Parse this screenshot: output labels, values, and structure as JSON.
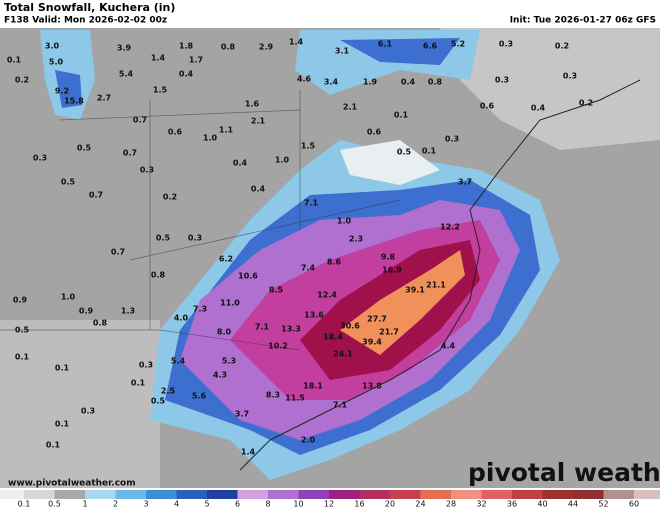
{
  "header": {
    "title": "Total Snowfall, Kuchera (in)",
    "valid": "F138 Valid: Mon 2026-02-02 00z",
    "init": "Init: Tue 2026-01-27 06z GFS"
  },
  "map_labels": [
    "0.1",
    "3.0",
    "3.9",
    "1.8",
    "0.8",
    "2.9",
    "1.4",
    "3.1",
    "6.1",
    "6.6",
    "5.2",
    "0.3",
    "0.2",
    "5.0",
    "1.4",
    "1.7",
    "0.4",
    "5.4",
    "0.2",
    "9.2",
    "15.8",
    "1.5",
    "2.7",
    "4.6",
    "3.4",
    "1.9",
    "0.4",
    "0.8",
    "0.3",
    "0.3",
    "0.7",
    "0.6",
    "1.0",
    "1.1",
    "2.1",
    "1.6",
    "2.1",
    "0.1",
    "0.6",
    "0.3",
    "0.5",
    "0.3",
    "0.7",
    "0.3",
    "0.4",
    "1.0",
    "1.5",
    "0.5",
    "0.1",
    "0.6",
    "0.4",
    "0.2",
    "0.5",
    "0.7",
    "0.2",
    "0.4",
    "7.1",
    "1.0",
    "2.3",
    "3.7",
    "12.2",
    "0.5",
    "0.3",
    "0.7",
    "6.2",
    "10.6",
    "7.4",
    "8.6",
    "9.8",
    "16.9",
    "0.8",
    "1.0",
    "0.9",
    "0.9",
    "0.8",
    "1.3",
    "7.3",
    "11.0",
    "8.5",
    "12.4",
    "39.1",
    "21.1",
    "4.0",
    "8.0",
    "7.1",
    "13.3",
    "13.6",
    "30.6",
    "27.7",
    "21.7",
    "18.4",
    "39.4",
    "24.1",
    "10.2",
    "0.5",
    "0.1",
    "0.1",
    "5.4",
    "5.3",
    "0.3",
    "4.3",
    "18.1",
    "13.8",
    "0.1",
    "2.5",
    "5.6",
    "8.3",
    "11.5",
    "0.5",
    "7.1",
    "3.7",
    "0.3",
    "0.1",
    "2.0",
    "1.4",
    "0.1",
    "4.4"
  ],
  "website": "www.pivotalweather.com",
  "watermark": "pivotal weather",
  "colorbar": {
    "ticks": [
      0.1,
      0.5,
      1,
      2,
      3,
      4,
      5,
      6,
      8,
      10,
      12,
      16,
      20,
      24,
      28,
      32,
      36,
      40,
      44,
      52,
      60
    ],
    "colors": [
      "#d8d8d8",
      "#a8a8a8",
      "#a8d8f0",
      "#6cb8e8",
      "#3c8cd8",
      "#2860c0",
      "#2040a0",
      "#d0a0e0",
      "#b070d0",
      "#9040b8",
      "#a02080",
      "#b03060",
      "#c84050",
      "#e07050",
      "#f09080",
      "#e06060",
      "#c04040",
      "#a03030",
      "#903030",
      "#b09090"
    ]
  }
}
